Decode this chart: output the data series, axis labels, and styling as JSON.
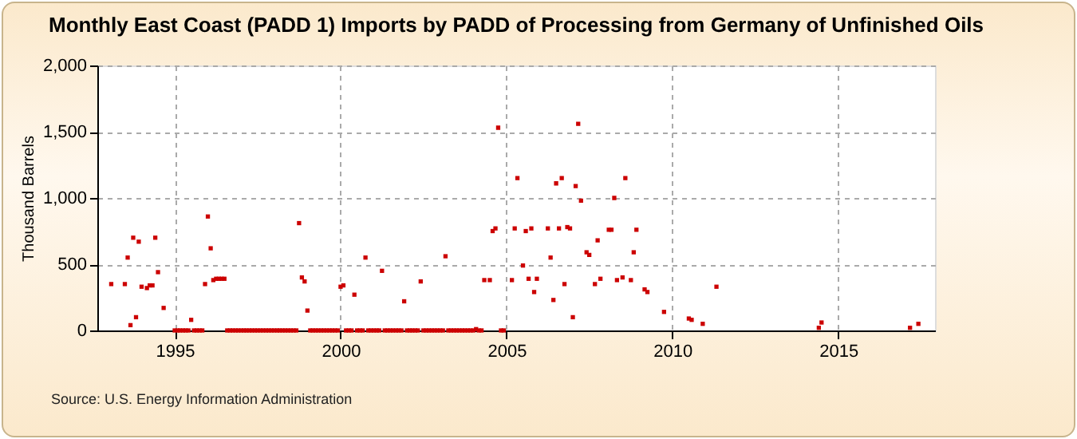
{
  "chart_data": {
    "type": "scatter",
    "title": "Monthly East Coast (PADD 1) Imports by PADD of Processing from Germany of Unfinished Oils",
    "ylabel": "Thousand Barrels",
    "annotations": [
      "Source: U.S. Energy Information Administration"
    ],
    "x": [
      "1993-02",
      "1993-07",
      "1993-08",
      "1993-09",
      "1993-10",
      "1993-11",
      "1993-12",
      "1994-01",
      "1994-03",
      "1994-04",
      "1994-05",
      "1994-06",
      "1994-07",
      "1994-09",
      "1995-01",
      "1995-02",
      "1995-03",
      "1995-04",
      "1995-05",
      "1995-06",
      "1995-07",
      "1995-08",
      "1995-09",
      "1995-10",
      "1995-11",
      "1995-12",
      "1996-01",
      "1996-02",
      "1996-03",
      "1996-04",
      "1996-05",
      "1996-06",
      "1996-07",
      "1996-08",
      "1996-09",
      "1996-10",
      "1996-11",
      "1996-12",
      "1997-01",
      "1997-02",
      "1997-03",
      "1997-04",
      "1997-05",
      "1997-06",
      "1997-07",
      "1997-08",
      "1997-09",
      "1997-10",
      "1997-11",
      "1997-12",
      "1998-01",
      "1998-02",
      "1998-03",
      "1998-04",
      "1998-05",
      "1998-06",
      "1998-07",
      "1998-08",
      "1998-09",
      "1998-10",
      "1998-11",
      "1998-12",
      "1999-01",
      "1999-02",
      "1999-03",
      "1999-04",
      "1999-05",
      "1999-06",
      "1999-07",
      "1999-08",
      "1999-09",
      "1999-10",
      "1999-11",
      "1999-12",
      "2000-01",
      "2000-02",
      "2000-03",
      "2000-04",
      "2000-05",
      "2000-06",
      "2000-07",
      "2000-08",
      "2000-09",
      "2000-10",
      "2000-11",
      "2000-12",
      "2001-01",
      "2001-02",
      "2001-03",
      "2001-04",
      "2001-05",
      "2001-06",
      "2001-07",
      "2001-08",
      "2001-09",
      "2001-10",
      "2001-11",
      "2001-12",
      "2002-01",
      "2002-02",
      "2002-03",
      "2002-04",
      "2002-05",
      "2002-06",
      "2002-07",
      "2002-08",
      "2002-09",
      "2002-10",
      "2002-11",
      "2002-12",
      "2003-01",
      "2003-02",
      "2003-03",
      "2003-04",
      "2003-05",
      "2003-06",
      "2003-07",
      "2003-08",
      "2003-09",
      "2003-10",
      "2003-11",
      "2003-12",
      "2004-01",
      "2004-02",
      "2004-03",
      "2004-04",
      "2004-05",
      "2004-07",
      "2004-08",
      "2004-09",
      "2004-10",
      "2004-11",
      "2004-12",
      "2005-03",
      "2005-04",
      "2005-05",
      "2005-07",
      "2005-08",
      "2005-09",
      "2005-10",
      "2005-11",
      "2005-12",
      "2006-04",
      "2006-05",
      "2006-06",
      "2006-07",
      "2006-08",
      "2006-09",
      "2006-10",
      "2006-11",
      "2006-12",
      "2007-01",
      "2007-02",
      "2007-03",
      "2007-04",
      "2007-06",
      "2007-07",
      "2007-09",
      "2007-10",
      "2007-11",
      "2008-02",
      "2008-03",
      "2008-04",
      "2008-05",
      "2008-07",
      "2008-08",
      "2008-10",
      "2008-11",
      "2008-12",
      "2009-03",
      "2009-04",
      "2009-10",
      "2010-07",
      "2010-08",
      "2010-12",
      "2011-05",
      "2014-06",
      "2014-07",
      "2017-03",
      "2017-06"
    ],
    "series": [
      {
        "color": "#cc0000",
        "values": [
          350,
          350,
          550,
          40,
          700,
          100,
          670,
          330,
          320,
          340,
          340,
          700,
          440,
          170,
          0,
          0,
          0,
          0,
          0,
          0,
          80,
          0,
          0,
          0,
          0,
          350,
          860,
          620,
          380,
          390,
          390,
          390,
          390,
          0,
          0,
          0,
          0,
          0,
          0,
          0,
          0,
          0,
          0,
          0,
          0,
          0,
          0,
          0,
          0,
          0,
          0,
          0,
          0,
          0,
          0,
          0,
          0,
          0,
          0,
          810,
          400,
          370,
          150,
          0,
          0,
          0,
          0,
          0,
          0,
          0,
          0,
          0,
          0,
          0,
          330,
          340,
          0,
          0,
          0,
          270,
          0,
          0,
          0,
          550,
          0,
          0,
          0,
          0,
          0,
          450,
          0,
          0,
          0,
          0,
          0,
          0,
          0,
          220,
          0,
          0,
          0,
          0,
          0,
          370,
          0,
          0,
          0,
          0,
          0,
          0,
          0,
          0,
          560,
          0,
          0,
          0,
          0,
          0,
          0,
          0,
          0,
          0,
          0,
          10,
          0,
          0,
          380,
          380,
          750,
          770,
          1530,
          0,
          0,
          380,
          770,
          1150,
          490,
          750,
          390,
          770,
          290,
          390,
          770,
          550,
          230,
          1110,
          770,
          1150,
          350,
          780,
          770,
          100,
          1090,
          1560,
          980,
          590,
          570,
          350,
          680,
          390,
          760,
          760,
          1000,
          380,
          400,
          1150,
          380,
          590,
          760,
          310,
          290,
          140,
          90,
          80,
          50,
          330,
          20,
          60,
          20,
          50
        ]
      }
    ],
    "xlim": [
      "1992-09",
      "2017-12"
    ],
    "xticks": [
      {
        "value": "1995",
        "label": "1995"
      },
      {
        "value": "2000",
        "label": "2000"
      },
      {
        "value": "2005",
        "label": "2005"
      },
      {
        "value": "2010",
        "label": "2010"
      },
      {
        "value": "2015",
        "label": "2015"
      }
    ],
    "ylim": [
      0,
      2000
    ],
    "yticks": [
      {
        "value": 0,
        "label": "0"
      },
      {
        "value": 500,
        "label": "500"
      },
      {
        "value": 1000,
        "label": "1,000"
      },
      {
        "value": 1500,
        "label": "1,500"
      },
      {
        "value": 2000,
        "label": "2,000"
      }
    ],
    "grid": true,
    "marker": "square"
  }
}
